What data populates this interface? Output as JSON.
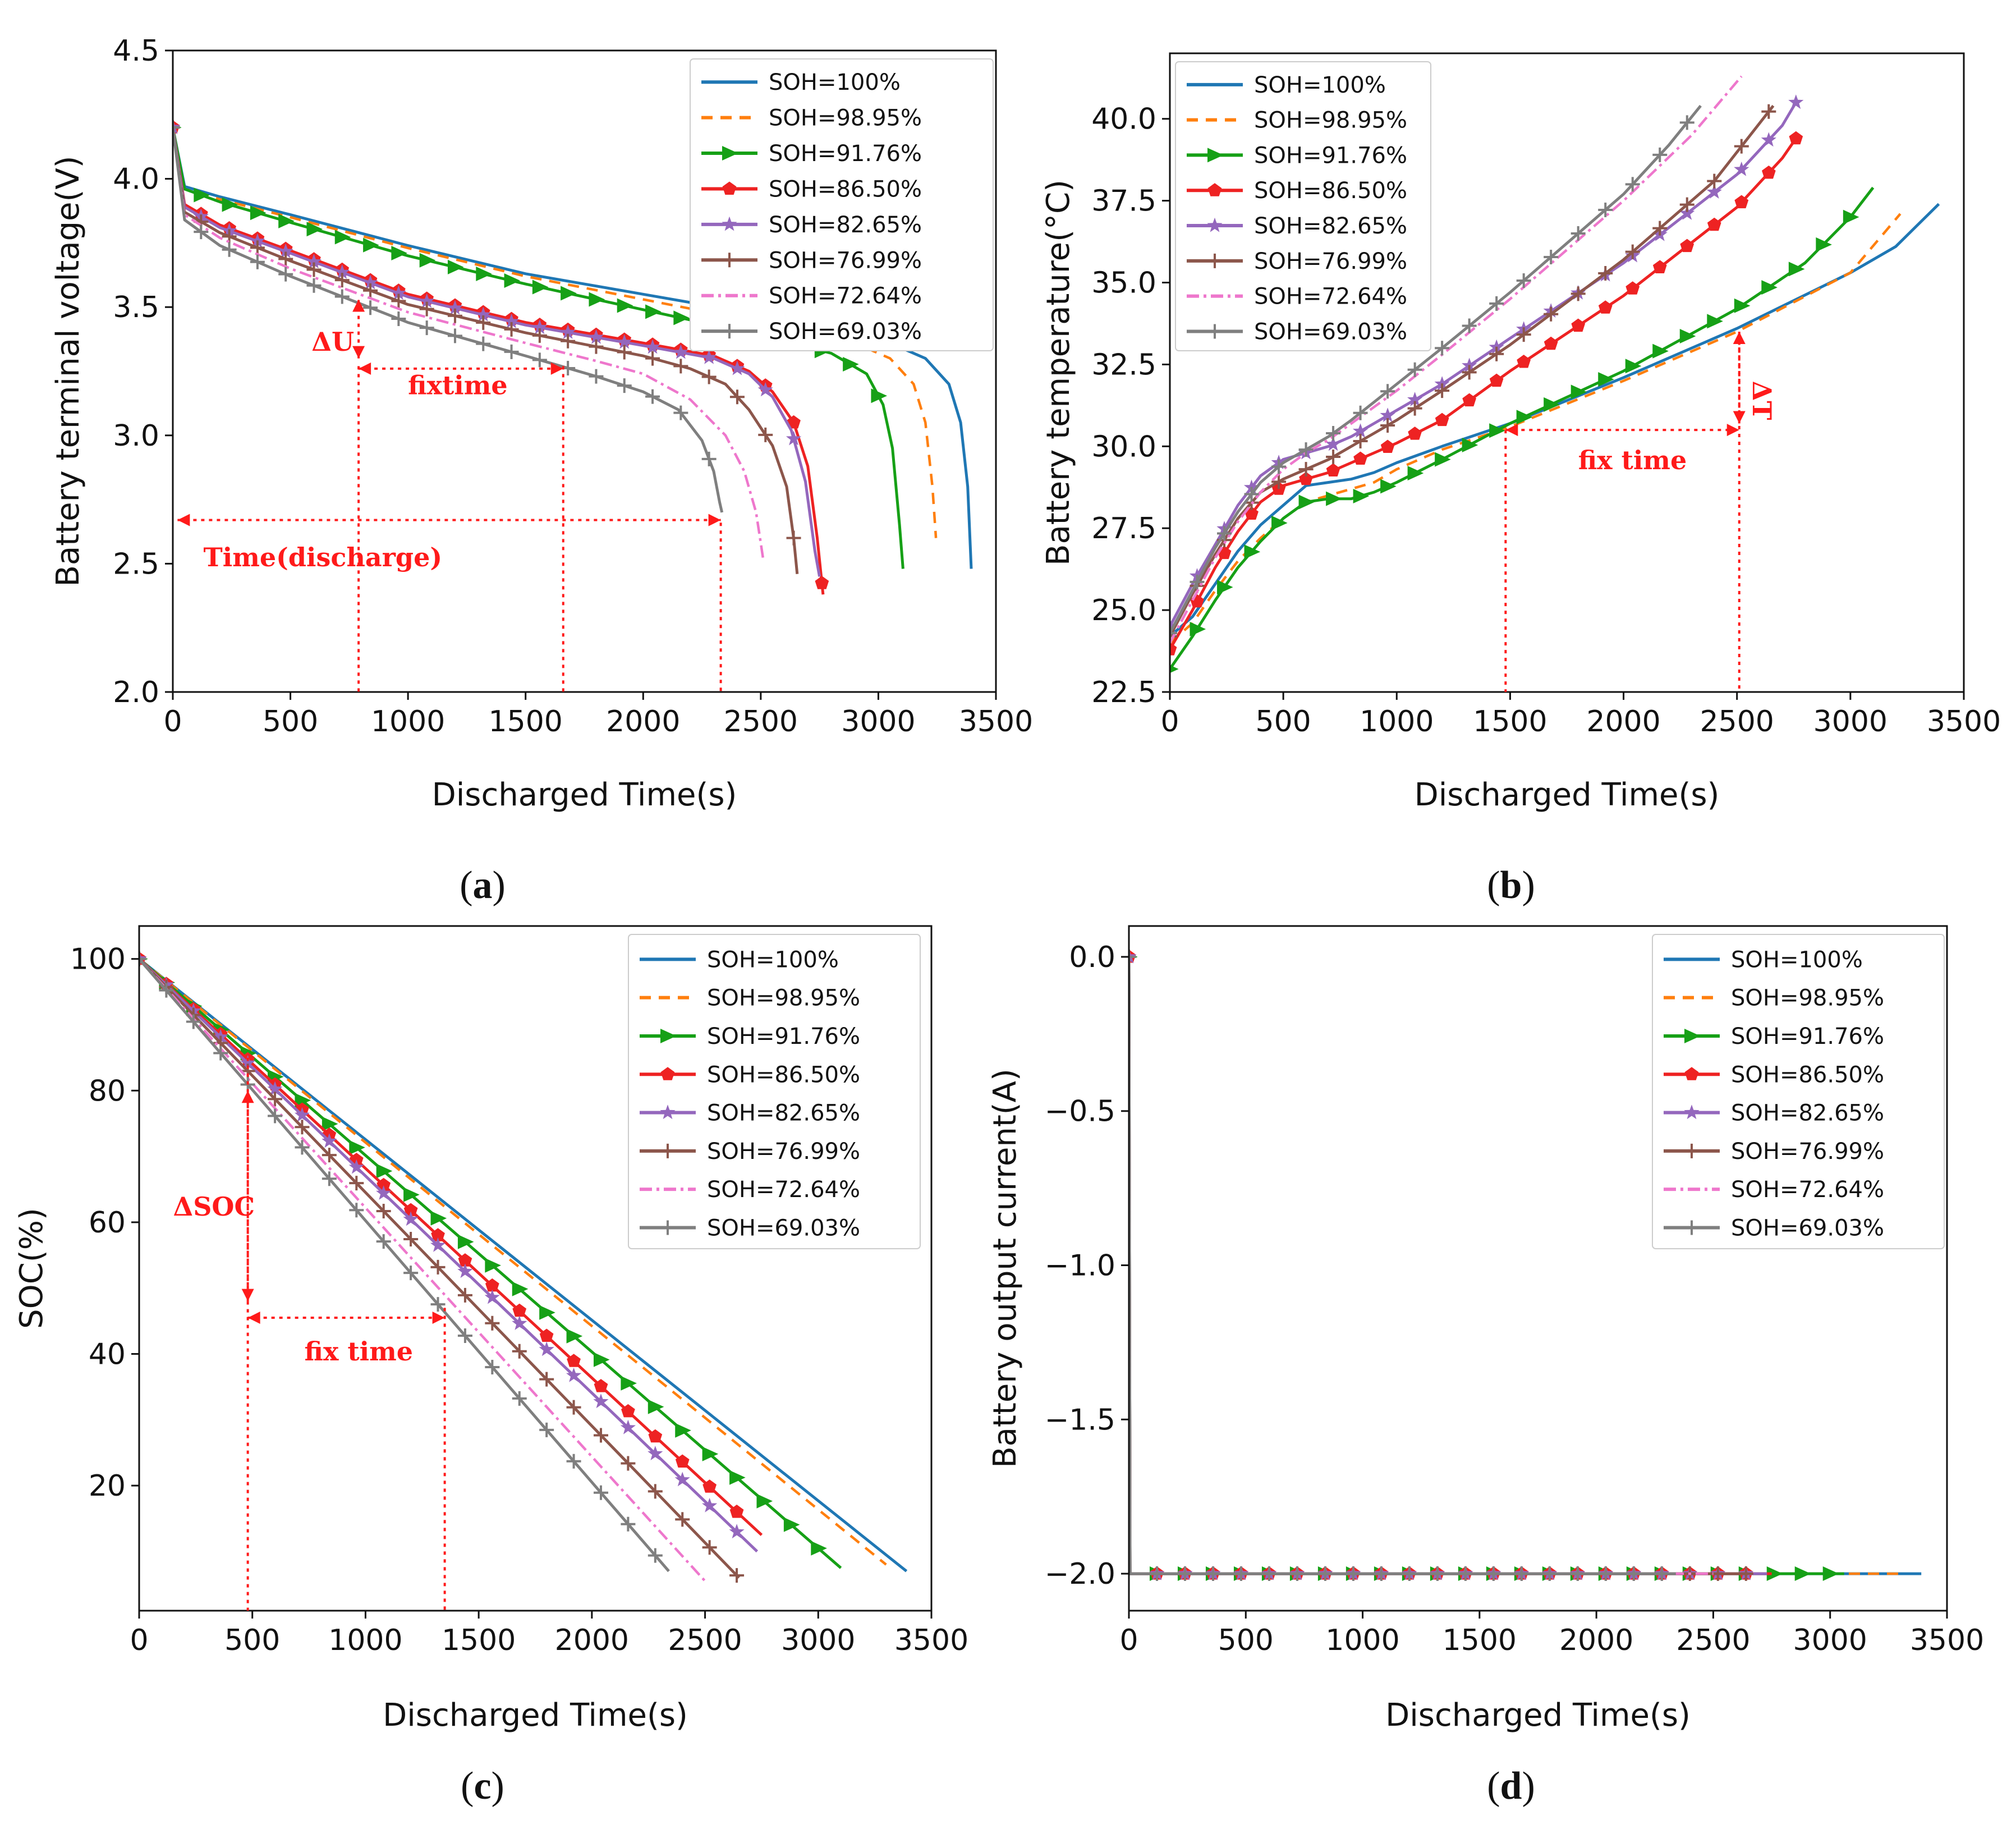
{
  "colors": {
    "SOH=100%": "#1f77b4",
    "SOH=98.95%": "#ff7f0e",
    "SOH=91.76%": "#16a016",
    "SOH=86.50%": "#ee2222",
    "SOH=82.65%": "#9467bd",
    "SOH=76.99%": "#8c564b",
    "SOH=72.64%": "#ee77cc",
    "SOH=69.03%": "#7f7f7f",
    "annotation": "#ff1a1a"
  },
  "series_styles": [
    {
      "name": "SOH=100%",
      "dash": "",
      "marker": "none"
    },
    {
      "name": "SOH=98.95%",
      "dash": "20 14",
      "marker": "none"
    },
    {
      "name": "SOH=91.76%",
      "dash": "",
      "marker": "triangle-right"
    },
    {
      "name": "SOH=86.50%",
      "dash": "",
      "marker": "pentagon"
    },
    {
      "name": "SOH=82.65%",
      "dash": "",
      "marker": "star"
    },
    {
      "name": "SOH=76.99%",
      "dash": "",
      "marker": "plus"
    },
    {
      "name": "SOH=72.64%",
      "dash": "22 8 5 8",
      "marker": "none"
    },
    {
      "name": "SOH=69.03%",
      "dash": "",
      "marker": "plus"
    }
  ],
  "chart_data": [
    {
      "id": "a",
      "caption": "(a)",
      "caption_letter": "a",
      "type": "line",
      "xlabel": "Discharged Time(s)",
      "ylabel": "Battery terminal voltage(V)",
      "xlim": [
        0,
        3500
      ],
      "ylim": [
        2.0,
        4.5
      ],
      "xticks": [
        0,
        500,
        1000,
        1500,
        2000,
        2500,
        3000,
        3500
      ],
      "yticks": [
        2.0,
        2.5,
        3.0,
        3.5,
        4.0,
        4.5
      ],
      "ytick_labels": [
        "2.0",
        "2.5",
        "3.0",
        "3.5",
        "4.0",
        "4.5"
      ],
      "legend": "top-right",
      "series": [
        {
          "name": "SOH=100%",
          "x": [
            0,
            50,
            200,
            500,
            1000,
            1500,
            2000,
            2500,
            3000,
            3200,
            3300,
            3350,
            3380,
            3395
          ],
          "y": [
            4.2,
            3.97,
            3.93,
            3.86,
            3.74,
            3.63,
            3.55,
            3.47,
            3.38,
            3.3,
            3.2,
            3.05,
            2.8,
            2.48
          ]
        },
        {
          "name": "SOH=98.95%",
          "x": [
            0,
            50,
            200,
            500,
            1000,
            1500,
            2000,
            2500,
            2900,
            3050,
            3150,
            3200,
            3230,
            3245
          ],
          "y": [
            4.2,
            3.96,
            3.92,
            3.85,
            3.73,
            3.62,
            3.53,
            3.44,
            3.36,
            3.3,
            3.2,
            3.05,
            2.8,
            2.6
          ]
        },
        {
          "name": "SOH=91.76%",
          "x": [
            0,
            50,
            200,
            500,
            1000,
            1500,
            2000,
            2500,
            2800,
            2950,
            3020,
            3060,
            3090,
            3105
          ],
          "y": [
            4.2,
            3.96,
            3.91,
            3.83,
            3.7,
            3.59,
            3.49,
            3.39,
            3.32,
            3.24,
            3.12,
            2.95,
            2.65,
            2.48
          ]
        },
        {
          "name": "SOH=86.50%",
          "x": [
            0,
            50,
            200,
            500,
            1000,
            1500,
            2000,
            2300,
            2450,
            2550,
            2640,
            2700,
            2740,
            2765
          ],
          "y": [
            4.2,
            3.9,
            3.82,
            3.72,
            3.55,
            3.44,
            3.36,
            3.31,
            3.25,
            3.17,
            3.05,
            2.88,
            2.6,
            2.38
          ]
        },
        {
          "name": "SOH=82.65%",
          "x": [
            0,
            50,
            200,
            500,
            1000,
            1500,
            2000,
            2300,
            2450,
            2550,
            2630,
            2690,
            2730,
            2750
          ],
          "y": [
            4.2,
            3.89,
            3.81,
            3.71,
            3.54,
            3.43,
            3.35,
            3.3,
            3.24,
            3.15,
            3.02,
            2.82,
            2.55,
            2.45
          ]
        },
        {
          "name": "SOH=76.99%",
          "x": [
            0,
            50,
            200,
            500,
            1000,
            1500,
            2000,
            2200,
            2350,
            2450,
            2550,
            2610,
            2640,
            2655
          ],
          "y": [
            4.2,
            3.87,
            3.79,
            3.68,
            3.51,
            3.4,
            3.31,
            3.26,
            3.2,
            3.1,
            2.96,
            2.8,
            2.6,
            2.46
          ]
        },
        {
          "name": "SOH=72.64%",
          "x": [
            0,
            50,
            200,
            500,
            1000,
            1500,
            1800,
            2000,
            2200,
            2350,
            2430,
            2480,
            2500,
            2510
          ],
          "y": [
            4.2,
            3.86,
            3.77,
            3.65,
            3.48,
            3.36,
            3.29,
            3.24,
            3.14,
            3.0,
            2.86,
            2.7,
            2.58,
            2.52
          ]
        },
        {
          "name": "SOH=69.03%",
          "x": [
            0,
            50,
            200,
            500,
            1000,
            1500,
            1800,
            2000,
            2150,
            2250,
            2300,
            2325,
            2335
          ],
          "y": [
            4.2,
            3.84,
            3.74,
            3.62,
            3.44,
            3.31,
            3.23,
            3.17,
            3.1,
            2.98,
            2.86,
            2.74,
            2.7
          ]
        }
      ],
      "annotations": [
        {
          "text": "ΔU"
        },
        {
          "text": "fixtime"
        },
        {
          "text": "Time(discharge)"
        }
      ]
    },
    {
      "id": "b",
      "caption": "(b)",
      "caption_letter": "b",
      "type": "line",
      "xlabel": "Discharged Time(s)",
      "ylabel": "Battery temperature(°C)",
      "xlim": [
        0,
        3500
      ],
      "ylim": [
        22.5,
        42.0
      ],
      "xticks": [
        0,
        500,
        1000,
        1500,
        2000,
        2500,
        3000,
        3500
      ],
      "yticks": [
        22.5,
        25.0,
        27.5,
        30.0,
        32.5,
        35.0,
        37.5,
        40.0
      ],
      "ytick_labels": [
        "22.5",
        "25.0",
        "27.5",
        "30.0",
        "32.5",
        "35.0",
        "37.5",
        "40.0"
      ],
      "legend": "top-left",
      "series": [
        {
          "name": "SOH=100%",
          "x": [
            0,
            100,
            200,
            300,
            400,
            500,
            600,
            700,
            800,
            900,
            1000,
            1200,
            1500,
            2000,
            2500,
            3000,
            3200,
            3390
          ],
          "y": [
            24.2,
            24.8,
            25.8,
            26.8,
            27.6,
            28.2,
            28.8,
            28.9,
            29.0,
            29.2,
            29.5,
            30.0,
            30.7,
            32.1,
            33.6,
            35.3,
            36.1,
            37.4
          ]
        },
        {
          "name": "SOH=98.95%",
          "x": [
            0,
            100,
            200,
            300,
            400,
            500,
            600,
            700,
            800,
            900,
            1000,
            1200,
            1500,
            2000,
            2500,
            3000,
            3220
          ],
          "y": [
            24.0,
            24.6,
            25.6,
            26.5,
            27.2,
            27.8,
            28.3,
            28.5,
            28.7,
            28.9,
            29.3,
            29.9,
            30.6,
            32.0,
            33.5,
            35.3,
            37.1
          ]
        },
        {
          "name": "SOH=91.76%",
          "x": [
            0,
            100,
            200,
            300,
            400,
            500,
            600,
            700,
            800,
            900,
            1000,
            1200,
            1500,
            2000,
            2500,
            2800,
            3000,
            3100
          ],
          "y": [
            23.2,
            24.2,
            25.3,
            26.3,
            27.1,
            27.8,
            28.3,
            28.4,
            28.4,
            28.6,
            28.9,
            29.6,
            30.7,
            32.3,
            34.2,
            35.6,
            37.0,
            37.9
          ]
        },
        {
          "name": "SOH=86.50%",
          "x": [
            0,
            100,
            200,
            300,
            400,
            500,
            600,
            700,
            800,
            900,
            1000,
            1200,
            1500,
            2000,
            2500,
            2700,
            2760
          ],
          "y": [
            23.8,
            25.0,
            26.3,
            27.4,
            28.3,
            28.8,
            29.0,
            29.2,
            29.5,
            29.8,
            30.1,
            30.8,
            32.3,
            34.6,
            37.3,
            38.8,
            39.4
          ]
        },
        {
          "name": "SOH=82.65%",
          "x": [
            0,
            100,
            200,
            300,
            400,
            500,
            600,
            700,
            800,
            900,
            1000,
            1200,
            1500,
            2000,
            2500,
            2700,
            2760
          ],
          "y": [
            24.5,
            25.8,
            27.0,
            28.2,
            29.1,
            29.6,
            29.8,
            30.0,
            30.3,
            30.7,
            31.1,
            31.9,
            33.3,
            35.6,
            38.3,
            39.8,
            40.5
          ]
        },
        {
          "name": "SOH=76.99%",
          "x": [
            0,
            100,
            200,
            300,
            400,
            500,
            600,
            700,
            800,
            900,
            1000,
            1200,
            1500,
            2000,
            2400,
            2660
          ],
          "y": [
            24.2,
            25.5,
            26.7,
            27.8,
            28.6,
            29.0,
            29.3,
            29.6,
            30.0,
            30.4,
            30.8,
            31.7,
            33.1,
            35.7,
            38.1,
            40.4
          ]
        },
        {
          "name": "SOH=72.64%",
          "x": [
            0,
            100,
            200,
            300,
            400,
            500,
            600,
            700,
            800,
            1000,
            1200,
            1500,
            2000,
            2300,
            2520
          ],
          "y": [
            24.0,
            25.3,
            26.6,
            27.7,
            28.6,
            29.3,
            29.8,
            30.2,
            30.7,
            31.7,
            32.8,
            34.5,
            37.5,
            39.5,
            41.3
          ]
        },
        {
          "name": "SOH=69.03%",
          "x": [
            0,
            100,
            200,
            300,
            400,
            500,
            600,
            700,
            800,
            1000,
            1200,
            1500,
            2000,
            2200,
            2340
          ],
          "y": [
            24.3,
            25.6,
            26.9,
            28.0,
            28.9,
            29.5,
            29.9,
            30.3,
            30.8,
            31.9,
            33.0,
            34.7,
            37.7,
            39.2,
            40.4
          ]
        }
      ],
      "annotations": [
        {
          "text": "ΔT"
        },
        {
          "text": "fix time"
        }
      ]
    },
    {
      "id": "c",
      "caption": "(c)",
      "caption_letter": "c",
      "type": "line",
      "xlabel": "Discharged Time(s)",
      "ylabel": "SOC(%)",
      "xlim": [
        0,
        3500
      ],
      "ylim": [
        1,
        105
      ],
      "xticks": [
        0,
        500,
        1000,
        1500,
        2000,
        2500,
        3000,
        3500
      ],
      "yticks": [
        20,
        40,
        60,
        80,
        100
      ],
      "ytick_labels": [
        "20",
        "40",
        "60",
        "80",
        "100"
      ],
      "legend": "top-right",
      "series": [
        {
          "name": "SOH=100%",
          "x": [
            0,
            3390
          ],
          "y": [
            100,
            7
          ]
        },
        {
          "name": "SOH=98.95%",
          "x": [
            0,
            3300
          ],
          "y": [
            100,
            8
          ]
        },
        {
          "name": "SOH=91.76%",
          "x": [
            0,
            3100
          ],
          "y": [
            100,
            7.5
          ]
        },
        {
          "name": "SOH=86.50%",
          "x": [
            0,
            2750
          ],
          "y": [
            100,
            12.5
          ]
        },
        {
          "name": "SOH=82.65%",
          "x": [
            0,
            2730
          ],
          "y": [
            100,
            10
          ]
        },
        {
          "name": "SOH=76.99%",
          "x": [
            0,
            2650
          ],
          "y": [
            100,
            6
          ]
        },
        {
          "name": "SOH=72.64%",
          "x": [
            0,
            2500
          ],
          "y": [
            100,
            5.5
          ]
        },
        {
          "name": "SOH=69.03%",
          "x": [
            0,
            2340
          ],
          "y": [
            100,
            7
          ]
        }
      ],
      "annotations": [
        {
          "text": "ΔSOC"
        },
        {
          "text": "fix time"
        }
      ]
    },
    {
      "id": "d",
      "caption": "(d)",
      "caption_letter": "d",
      "type": "line",
      "xlabel": "Discharged Time(s)",
      "ylabel": "Battery output current(A)",
      "xlim": [
        0,
        3500
      ],
      "ylim": [
        -2.12,
        0.1
      ],
      "xticks": [
        0,
        500,
        1000,
        1500,
        2000,
        2500,
        3000,
        3500
      ],
      "yticks": [
        -2.0,
        -1.5,
        -1.0,
        -0.5,
        0.0
      ],
      "ytick_labels": [
        "−2.0",
        "−1.5",
        "−1.0",
        "−0.5",
        "0.0"
      ],
      "legend": "top-right",
      "series": [
        {
          "name": "SOH=100%",
          "x": [
            0,
            5,
            3390
          ],
          "y": [
            0.0,
            -2.0,
            -2.0
          ]
        },
        {
          "name": "SOH=98.95%",
          "x": [
            0,
            5,
            3300
          ],
          "y": [
            0.0,
            -2.0,
            -2.0
          ]
        },
        {
          "name": "SOH=91.76%",
          "x": [
            0,
            5,
            3060
          ],
          "y": [
            0.0,
            -2.0,
            -2.0
          ]
        },
        {
          "name": "SOH=86.50%",
          "x": [
            0,
            5,
            2750
          ],
          "y": [
            0.0,
            -2.0,
            -2.0
          ]
        },
        {
          "name": "SOH=82.65%",
          "x": [
            0,
            5,
            2730
          ],
          "y": [
            0.0,
            -2.0,
            -2.0
          ]
        },
        {
          "name": "SOH=76.99%",
          "x": [
            0,
            5,
            2650
          ],
          "y": [
            0.0,
            -2.0,
            -2.0
          ]
        },
        {
          "name": "SOH=72.64%",
          "x": [
            0,
            5,
            2500
          ],
          "y": [
            0.0,
            -2.0,
            -2.0
          ]
        },
        {
          "name": "SOH=69.03%",
          "x": [
            0,
            5,
            2340
          ],
          "y": [
            0.0,
            -2.0,
            -2.0
          ]
        }
      ],
      "annotations": []
    }
  ]
}
